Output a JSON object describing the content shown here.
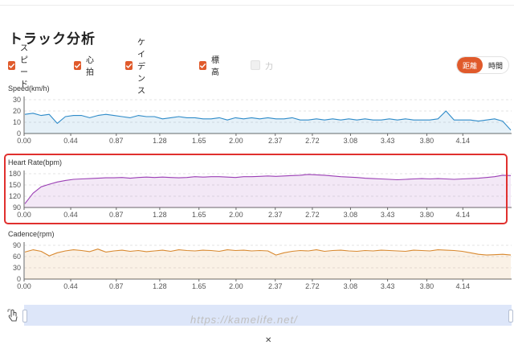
{
  "page": {
    "title": "トラック分析"
  },
  "filters": [
    {
      "label": "スピード",
      "checked": true
    },
    {
      "label": "心拍",
      "checked": true
    },
    {
      "label": "ケイデンス",
      "checked": true
    },
    {
      "label": "標高",
      "checked": true
    },
    {
      "label": "力",
      "checked": false
    }
  ],
  "toggle": {
    "distance": "距離",
    "time": "時間",
    "active": "distance"
  },
  "watermark": "https://kamelife.net/",
  "close_mark": "✕",
  "colors": {
    "accent": "#e05a2b",
    "speed": "#2e8bc9",
    "heart": "#9b3fb5",
    "cadence": "#d9892f",
    "highlight": "#e0302e"
  },
  "chart_data": [
    {
      "type": "line",
      "title": "Speed(km/h)",
      "x_ticks": [
        "0.00",
        "0.44",
        "0.87",
        "1.28",
        "1.65",
        "2.00",
        "2.37",
        "2.72",
        "3.08",
        "3.43",
        "3.80",
        "4.14"
      ],
      "y_ticks": [
        "0",
        "10",
        "20",
        "30"
      ],
      "ylim": [
        0,
        30
      ],
      "xlim": [
        0,
        4.6
      ],
      "series": [
        {
          "values": [
            17,
            18,
            16,
            17,
            9,
            15,
            16,
            16,
            14,
            16,
            17,
            16,
            15,
            14,
            16,
            15,
            15,
            13,
            14,
            15,
            14,
            14,
            13,
            13,
            14,
            12,
            14,
            13,
            14,
            13,
            14,
            13,
            13,
            14,
            12,
            12,
            13,
            12,
            13,
            12,
            13,
            12,
            13,
            12,
            12,
            13,
            12,
            13,
            12,
            12,
            12,
            13,
            20,
            12,
            12,
            12,
            11,
            12,
            13,
            11,
            3
          ]
        }
      ]
    },
    {
      "type": "line",
      "title": "Heart Rate(bpm)",
      "x_ticks": [
        "0.00",
        "0.44",
        "0.87",
        "1.28",
        "1.65",
        "2.00",
        "2.37",
        "2.72",
        "3.08",
        "3.43",
        "3.80",
        "4.14"
      ],
      "y_ticks": [
        "90",
        "120",
        "150",
        "180"
      ],
      "ylim": [
        90,
        180
      ],
      "xlim": [
        0,
        4.6
      ],
      "series": [
        {
          "values": [
            100,
            128,
            145,
            152,
            158,
            162,
            165,
            166,
            167,
            168,
            169,
            169,
            170,
            168,
            170,
            171,
            170,
            171,
            170,
            169,
            170,
            172,
            171,
            172,
            172,
            171,
            170,
            172,
            172,
            173,
            174,
            173,
            174,
            175,
            176,
            178,
            177,
            176,
            174,
            172,
            171,
            170,
            168,
            167,
            166,
            165,
            164,
            165,
            166,
            167,
            166,
            167,
            166,
            165,
            166,
            167,
            168,
            170,
            172,
            176,
            175
          ]
        }
      ]
    },
    {
      "type": "area",
      "title": "Cadence(rpm)",
      "x_ticks": [
        "0.00",
        "0.44",
        "0.87",
        "1.28",
        "1.65",
        "2.00",
        "2.37",
        "2.72",
        "3.08",
        "3.43",
        "3.80",
        "4.14"
      ],
      "y_ticks": [
        "0",
        "30",
        "60",
        "90"
      ],
      "ylim": [
        0,
        90
      ],
      "xlim": [
        0,
        4.6
      ],
      "series": [
        {
          "values": [
            72,
            78,
            74,
            62,
            70,
            75,
            78,
            76,
            73,
            80,
            72,
            75,
            77,
            74,
            76,
            73,
            75,
            77,
            74,
            78,
            76,
            75,
            77,
            76,
            74,
            78,
            76,
            77,
            75,
            76,
            75,
            64,
            70,
            74,
            76,
            75,
            78,
            74,
            76,
            77,
            75,
            74,
            76,
            75,
            77,
            76,
            75,
            74,
            77,
            76,
            75,
            78,
            77,
            76,
            74,
            70,
            66,
            64,
            65,
            66,
            64
          ]
        }
      ]
    }
  ]
}
